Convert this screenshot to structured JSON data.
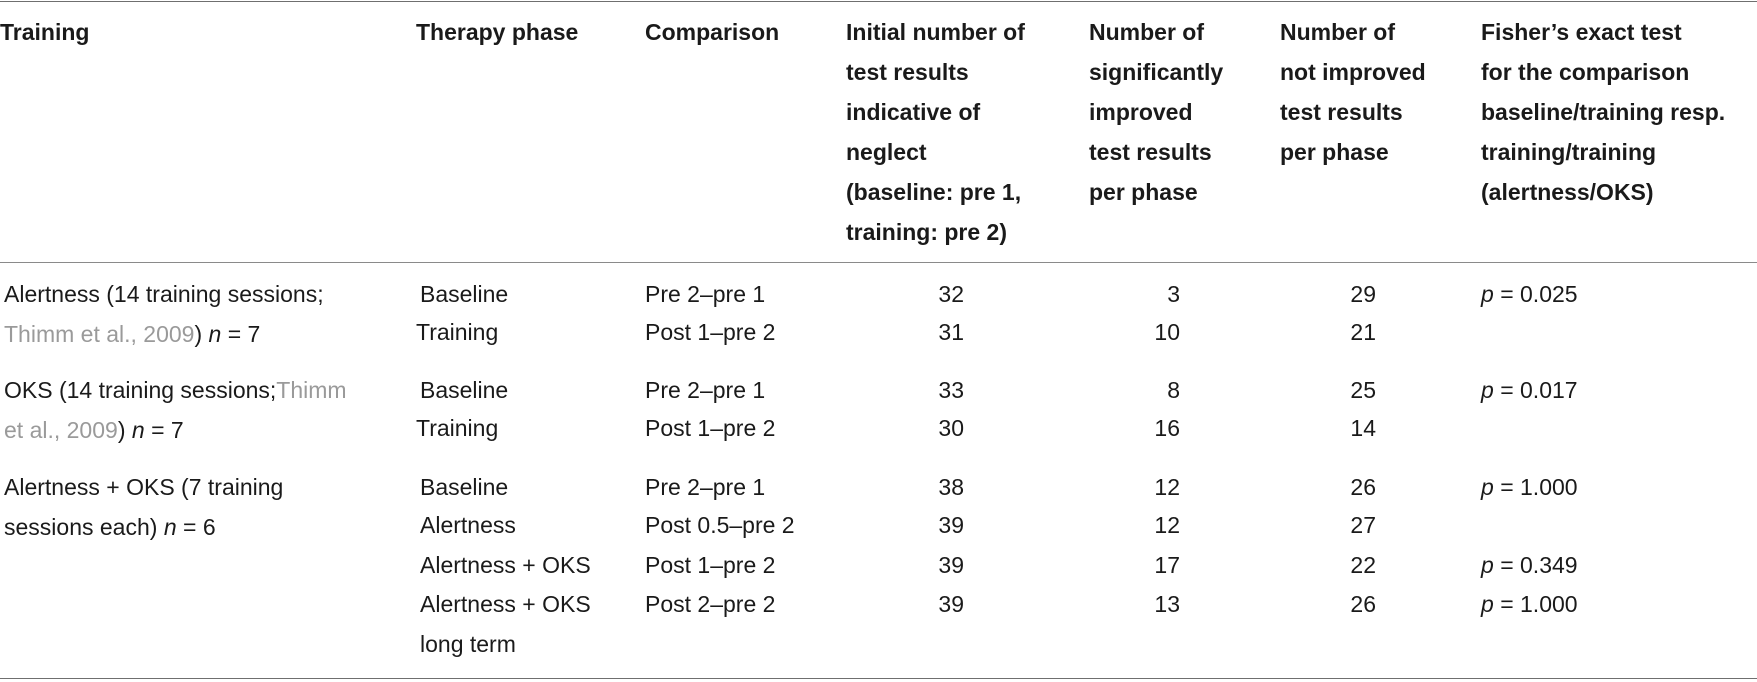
{
  "headers": {
    "training": [
      "Training"
    ],
    "phase": [
      "Therapy phase"
    ],
    "comparison": [
      "Comparison"
    ],
    "initial": [
      "Initial number of",
      "test results",
      "indicative of",
      "neglect",
      "(baseline: pre 1,",
      "training: pre 2)"
    ],
    "improved": [
      "Number of",
      "significantly",
      "improved",
      "test results",
      "per phase"
    ],
    "not_improved": [
      "Number of",
      "not improved",
      "test results",
      "per phase"
    ],
    "fisher": [
      "Fisher’s exact test",
      "for the comparison",
      "baseline/training resp.",
      "training/training",
      "(alertness/OKS)"
    ]
  },
  "groups": [
    {
      "training_line1": "Alertness (14 training sessions;",
      "ref_part1": "",
      "ref_part2": "Thimm et al., 2009",
      "n_label": "n",
      "n_value": "= 7",
      "rows": [
        {
          "phase": "Baseline",
          "comparison": "Pre 2–pre 1",
          "initial": "32",
          "improved": "3",
          "not_improved": "29",
          "fisher_p": "p",
          "fisher_val": "= 0.025"
        },
        {
          "phase": "Training",
          "comparison": "Post 1–pre 2",
          "initial": "31",
          "improved": "10",
          "not_improved": "21",
          "fisher_p": "",
          "fisher_val": ""
        }
      ]
    },
    {
      "training_line1": "OKS (14 training sessions;",
      "ref_part1": "Thimm",
      "ref_part2": "et al., 2009",
      "n_label": "n",
      "n_value": "= 7",
      "rows": [
        {
          "phase": "Baseline",
          "comparison": "Pre 2–pre 1",
          "initial": "33",
          "improved": "8",
          "not_improved": "25",
          "fisher_p": "p",
          "fisher_val": "= 0.017"
        },
        {
          "phase": "Training",
          "comparison": "Post 1–pre 2",
          "initial": "30",
          "improved": "16",
          "not_improved": "14",
          "fisher_p": "",
          "fisher_val": ""
        }
      ]
    },
    {
      "training_line1": "Alertness + OKS (7 training",
      "training_line2": "sessions each)",
      "n_label": "n",
      "n_value": "= 6",
      "rows": [
        {
          "phase": "Baseline",
          "comparison": "Pre 2–pre 1",
          "initial": "38",
          "improved": "12",
          "not_improved": "26",
          "fisher_p": "p",
          "fisher_val": "= 1.000"
        },
        {
          "phase": "Alertness",
          "comparison": "Post 0.5–pre 2",
          "initial": "39",
          "improved": "12",
          "not_improved": "27",
          "fisher_p": "",
          "fisher_val": ""
        },
        {
          "phase": "Alertness + OKS",
          "comparison": "Post 1–pre 2",
          "initial": "39",
          "improved": "17",
          "not_improved": "22",
          "fisher_p": "p",
          "fisher_val": "= 0.349"
        },
        {
          "phase": "Alertness + OKS",
          "phase_line2": "long term",
          "comparison": "Post 2–pre 2",
          "initial": "39",
          "improved": "13",
          "not_improved": "26",
          "fisher_p": "p",
          "fisher_val": "= 1.000"
        }
      ]
    }
  ]
}
